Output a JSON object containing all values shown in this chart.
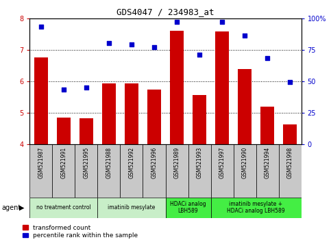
{
  "title": "GDS4047 / 234983_at",
  "samples": [
    "GSM521987",
    "GSM521991",
    "GSM521995",
    "GSM521988",
    "GSM521992",
    "GSM521996",
    "GSM521989",
    "GSM521993",
    "GSM521997",
    "GSM521990",
    "GSM521994",
    "GSM521998"
  ],
  "bar_values": [
    6.75,
    4.85,
    4.82,
    5.92,
    5.92,
    5.73,
    7.6,
    5.55,
    7.58,
    6.38,
    5.18,
    4.62
  ],
  "scatter_values": [
    93,
    43,
    45,
    80,
    79,
    77,
    97,
    71,
    97,
    86,
    68,
    49
  ],
  "ylim_left": [
    4,
    8
  ],
  "ylim_right": [
    0,
    100
  ],
  "yticks_left": [
    4,
    5,
    6,
    7,
    8
  ],
  "yticks_right": [
    0,
    25,
    50,
    75,
    100
  ],
  "bar_color": "#cc0000",
  "scatter_color": "#0000cc",
  "agent_groups": [
    {
      "label": "no treatment control",
      "start": 0,
      "end": 3,
      "color": "#c8eec8"
    },
    {
      "label": "imatinib mesylate",
      "start": 3,
      "end": 6,
      "color": "#c8eec8"
    },
    {
      "label": "HDACi analog\nLBH589",
      "start": 6,
      "end": 8,
      "color": "#44ee44"
    },
    {
      "label": "imatinib mesylate +\nHDACi analog LBH589",
      "start": 8,
      "end": 12,
      "color": "#44ee44"
    }
  ],
  "legend_items": [
    {
      "color": "#cc0000",
      "label": "transformed count"
    },
    {
      "color": "#0000cc",
      "label": "percentile rank within the sample"
    }
  ],
  "bar_baseline": 4,
  "label_bg": "#c8c8c8",
  "label_fontsize": 5.5,
  "title_fontsize": 9
}
